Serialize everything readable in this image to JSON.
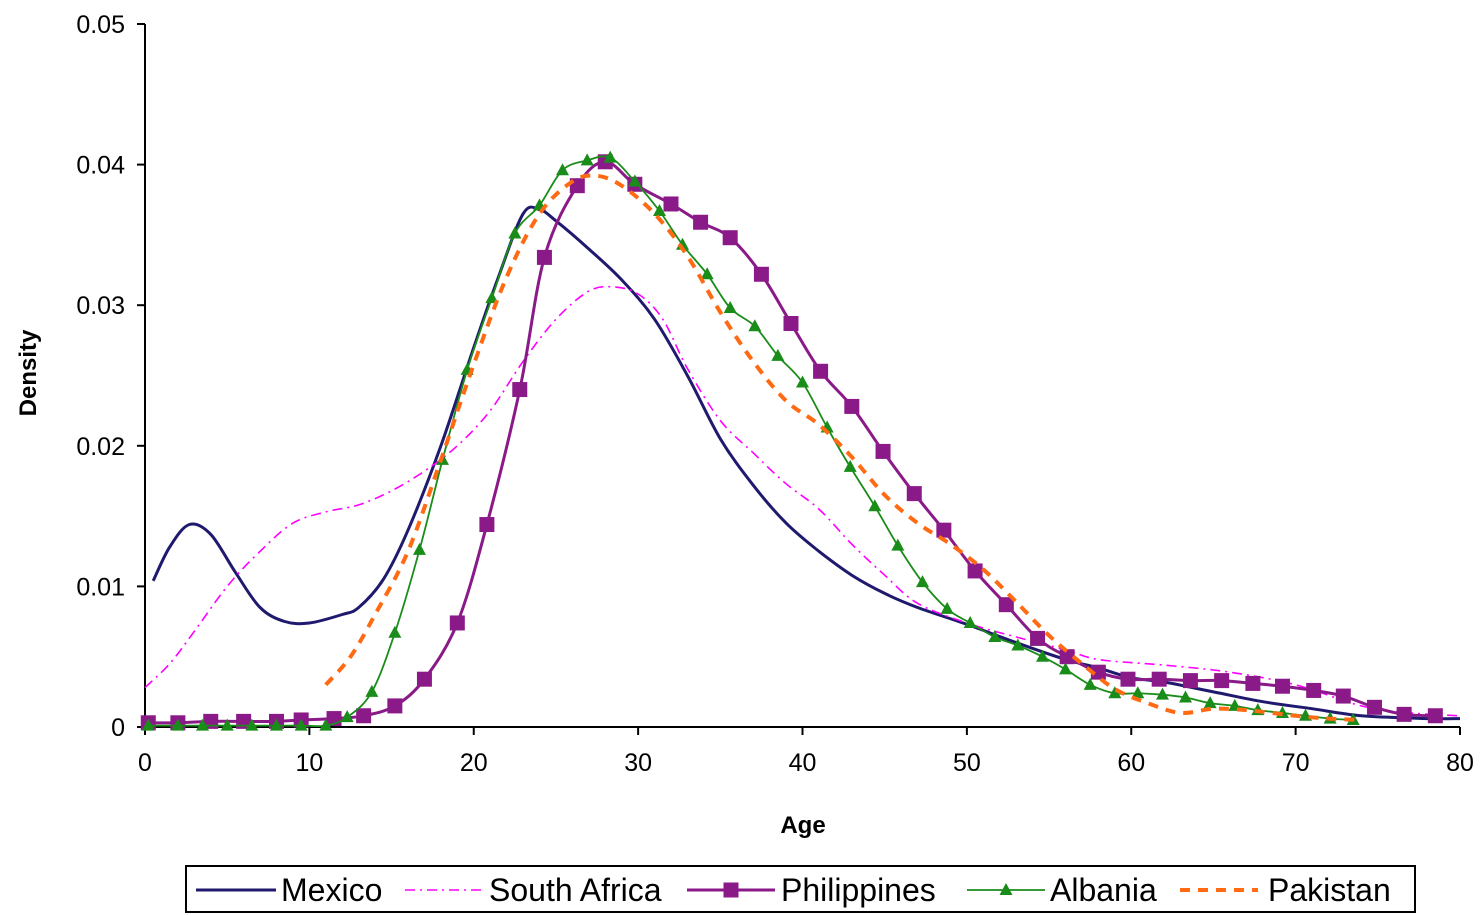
{
  "chart_data": {
    "type": "line",
    "title": "",
    "xlabel": "Age",
    "ylabel": "Density",
    "xlim": [
      0,
      80
    ],
    "ylim": [
      0,
      0.05
    ],
    "x_ticks": [
      0,
      10,
      20,
      30,
      40,
      50,
      60,
      70,
      80
    ],
    "y_ticks": [
      0,
      0.01,
      0.02,
      0.03,
      0.04,
      0.05
    ],
    "x_tick_labels": [
      "0",
      "10",
      "20",
      "30",
      "40",
      "50",
      "60",
      "70",
      "80"
    ],
    "y_tick_labels": [
      "0",
      "0.01",
      "0.02",
      "0.03",
      "0.04",
      "0.05"
    ],
    "grid": false,
    "legend_position": "bottom",
    "series": [
      {
        "name": "Mexico",
        "color": "#1f1a6e",
        "line_style": "solid",
        "marker": "none",
        "points": [
          [
            0.5,
            0.0104
          ],
          [
            1.5,
            0.0128
          ],
          [
            2.7,
            0.0144
          ],
          [
            4,
            0.0137
          ],
          [
            5.5,
            0.011
          ],
          [
            7,
            0.0085
          ],
          [
            8.5,
            0.0075
          ],
          [
            10,
            0.0074
          ],
          [
            12,
            0.008
          ],
          [
            13,
            0.0085
          ],
          [
            14.5,
            0.0105
          ],
          [
            16,
            0.014
          ],
          [
            18,
            0.02
          ],
          [
            20,
            0.027
          ],
          [
            21.5,
            0.032
          ],
          [
            23,
            0.0365
          ],
          [
            24,
            0.0368
          ],
          [
            25,
            0.036
          ],
          [
            27,
            0.034
          ],
          [
            29,
            0.0318
          ],
          [
            31,
            0.029
          ],
          [
            33,
            0.025
          ],
          [
            35,
            0.0205
          ],
          [
            37,
            0.0172
          ],
          [
            39,
            0.0145
          ],
          [
            41,
            0.0125
          ],
          [
            43,
            0.0108
          ],
          [
            45,
            0.0095
          ],
          [
            47,
            0.0085
          ],
          [
            50,
            0.0073
          ],
          [
            53,
            0.006
          ],
          [
            56,
            0.0048
          ],
          [
            58,
            0.0042
          ],
          [
            60,
            0.0035
          ],
          [
            62,
            0.0032
          ],
          [
            65,
            0.0025
          ],
          [
            68,
            0.0018
          ],
          [
            71,
            0.0013
          ],
          [
            74,
            0.0008
          ],
          [
            78,
            0.0006
          ],
          [
            80,
            0.0006
          ]
        ]
      },
      {
        "name": "South Africa",
        "color": "#ff00ff",
        "line_style": "dashdot",
        "marker": "none",
        "points": [
          [
            0,
            0.0028
          ],
          [
            1.5,
            0.0045
          ],
          [
            3,
            0.0068
          ],
          [
            5,
            0.01
          ],
          [
            7,
            0.0125
          ],
          [
            9,
            0.0145
          ],
          [
            11,
            0.0153
          ],
          [
            13,
            0.0158
          ],
          [
            15,
            0.0168
          ],
          [
            17,
            0.0182
          ],
          [
            19,
            0.02
          ],
          [
            21,
            0.0225
          ],
          [
            23,
            0.026
          ],
          [
            25,
            0.029
          ],
          [
            27,
            0.031
          ],
          [
            28.5,
            0.0313
          ],
          [
            30,
            0.0308
          ],
          [
            31.5,
            0.029
          ],
          [
            33,
            0.0255
          ],
          [
            35,
            0.0218
          ],
          [
            37,
            0.0195
          ],
          [
            39,
            0.0173
          ],
          [
            41,
            0.0155
          ],
          [
            43,
            0.013
          ],
          [
            45,
            0.0108
          ],
          [
            47,
            0.0088
          ],
          [
            50,
            0.0074
          ],
          [
            53,
            0.0064
          ],
          [
            56,
            0.0055
          ],
          [
            58,
            0.0048
          ],
          [
            62,
            0.0044
          ],
          [
            66,
            0.0039
          ],
          [
            70,
            0.003
          ],
          [
            74,
            0.0015
          ],
          [
            77,
            0.001
          ],
          [
            80,
            0.0008
          ]
        ]
      },
      {
        "name": "Philippines",
        "color": "#8b1a89",
        "line_style": "solid",
        "marker": "square",
        "points": [
          [
            0.2,
            0.0003
          ],
          [
            2,
            0.0003
          ],
          [
            4,
            0.0004
          ],
          [
            6,
            0.0004
          ],
          [
            8,
            0.0004
          ],
          [
            9.5,
            0.0005
          ],
          [
            11.5,
            0.0006
          ],
          [
            13.3,
            0.0008
          ],
          [
            15.2,
            0.0015
          ],
          [
            17,
            0.0034
          ],
          [
            19,
            0.0074
          ],
          [
            20.8,
            0.0144
          ],
          [
            22.8,
            0.024
          ],
          [
            24.3,
            0.0334
          ],
          [
            26.3,
            0.0385
          ],
          [
            28,
            0.0402
          ],
          [
            29.8,
            0.0386
          ],
          [
            32,
            0.0372
          ],
          [
            33.8,
            0.0359
          ],
          [
            35.6,
            0.0348
          ],
          [
            37.5,
            0.0322
          ],
          [
            39.3,
            0.0287
          ],
          [
            41.1,
            0.0253
          ],
          [
            43,
            0.0228
          ],
          [
            44.9,
            0.0196
          ],
          [
            46.8,
            0.0166
          ],
          [
            48.6,
            0.014
          ],
          [
            50.5,
            0.0111
          ],
          [
            52.4,
            0.0087
          ],
          [
            54.3,
            0.0063
          ],
          [
            56.1,
            0.005
          ],
          [
            58,
            0.0039
          ],
          [
            59.8,
            0.0034
          ],
          [
            61.7,
            0.0034
          ],
          [
            63.6,
            0.0033
          ],
          [
            65.5,
            0.0033
          ],
          [
            67.4,
            0.0031
          ],
          [
            69.2,
            0.0029
          ],
          [
            71.1,
            0.0026
          ],
          [
            72.9,
            0.0022
          ],
          [
            74.8,
            0.0014
          ],
          [
            76.6,
            0.0009
          ],
          [
            78.5,
            0.0008
          ]
        ]
      },
      {
        "name": "Albania",
        "color": "#1a8c1a",
        "line_style": "solid",
        "marker": "triangle",
        "points": [
          [
            0.2,
            0.0001
          ],
          [
            2,
            0.0001
          ],
          [
            3.5,
            0.0001
          ],
          [
            5,
            0.0001
          ],
          [
            6.5,
            0.0001
          ],
          [
            8,
            0.0001
          ],
          [
            9.5,
            0.0001
          ],
          [
            11,
            0.0001
          ],
          [
            12.3,
            0.0007
          ],
          [
            13.8,
            0.0025
          ],
          [
            15.2,
            0.0067
          ],
          [
            16.7,
            0.0126
          ],
          [
            18.1,
            0.019
          ],
          [
            19.6,
            0.0254
          ],
          [
            21.1,
            0.0305
          ],
          [
            22.5,
            0.0351
          ],
          [
            24,
            0.0371
          ],
          [
            25.4,
            0.0396
          ],
          [
            26.9,
            0.0403
          ],
          [
            28.3,
            0.0405
          ],
          [
            29.8,
            0.0388
          ],
          [
            31.3,
            0.0367
          ],
          [
            32.7,
            0.0343
          ],
          [
            34.2,
            0.0322
          ],
          [
            35.6,
            0.0298
          ],
          [
            37.1,
            0.0285
          ],
          [
            38.5,
            0.0264
          ],
          [
            40,
            0.0245
          ],
          [
            41.5,
            0.0213
          ],
          [
            42.9,
            0.0185
          ],
          [
            44.4,
            0.0157
          ],
          [
            45.8,
            0.0129
          ],
          [
            47.3,
            0.0103
          ],
          [
            48.8,
            0.0084
          ],
          [
            50.2,
            0.0074
          ],
          [
            51.7,
            0.0064
          ],
          [
            53.1,
            0.0058
          ],
          [
            54.6,
            0.005
          ],
          [
            56,
            0.0041
          ],
          [
            57.5,
            0.003
          ],
          [
            59,
            0.0024
          ],
          [
            60.4,
            0.0024
          ],
          [
            61.9,
            0.0023
          ],
          [
            63.3,
            0.0021
          ],
          [
            64.8,
            0.0017
          ],
          [
            66.3,
            0.0015
          ],
          [
            67.7,
            0.0012
          ],
          [
            69.2,
            0.001
          ],
          [
            70.6,
            0.0008
          ],
          [
            72.1,
            0.0006
          ],
          [
            73.5,
            0.0005
          ]
        ]
      },
      {
        "name": "Pakistan",
        "color": "#ff6a13",
        "line_style": "dashed",
        "marker": "none",
        "points": [
          [
            11,
            0.003
          ],
          [
            12.5,
            0.005
          ],
          [
            14,
            0.008
          ],
          [
            16,
            0.0125
          ],
          [
            18,
            0.019
          ],
          [
            20,
            0.0258
          ],
          [
            22,
            0.032
          ],
          [
            24,
            0.0365
          ],
          [
            26,
            0.0388
          ],
          [
            27.5,
            0.0392
          ],
          [
            29,
            0.0385
          ],
          [
            31,
            0.0365
          ],
          [
            33,
            0.0335
          ],
          [
            35,
            0.0295
          ],
          [
            37,
            0.026
          ],
          [
            39,
            0.0232
          ],
          [
            41,
            0.0215
          ],
          [
            43,
            0.0192
          ],
          [
            45,
            0.0165
          ],
          [
            47,
            0.0145
          ],
          [
            49,
            0.013
          ],
          [
            51,
            0.0112
          ],
          [
            53,
            0.0089
          ],
          [
            55,
            0.0065
          ],
          [
            57,
            0.0045
          ],
          [
            59,
            0.0027
          ],
          [
            61,
            0.0017
          ],
          [
            63,
            0.001
          ],
          [
            65,
            0.0013
          ],
          [
            67,
            0.0012
          ],
          [
            70,
            0.0008
          ],
          [
            72,
            0.0006
          ],
          [
            74,
            0.0005
          ]
        ]
      }
    ]
  }
}
